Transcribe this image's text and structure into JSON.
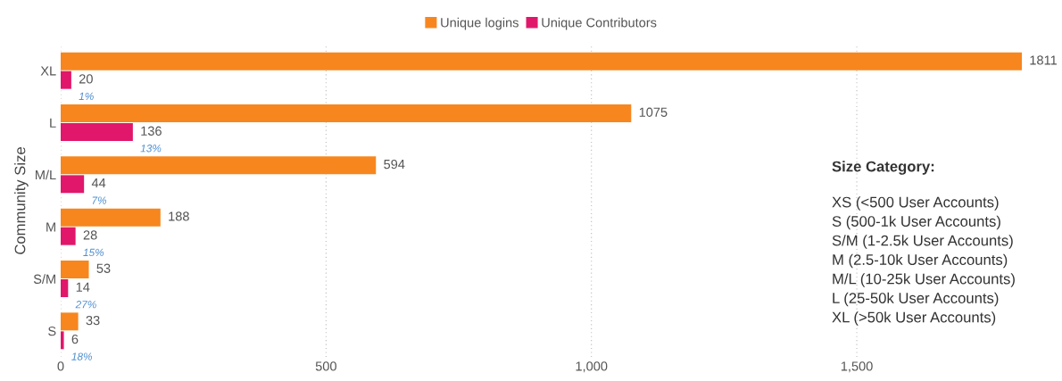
{
  "chart_data": {
    "type": "bar",
    "orientation": "horizontal",
    "categories": [
      "XL",
      "L",
      "M/L",
      "M",
      "S/M",
      "S"
    ],
    "series": [
      {
        "name": "Unique logins",
        "color": "#f7861f",
        "values": [
          1811,
          1075,
          594,
          188,
          53,
          33
        ]
      },
      {
        "name": "Unique Contributors",
        "color": "#e0176a",
        "values": [
          20,
          136,
          44,
          28,
          14,
          6
        ]
      }
    ],
    "ylabel": "Community Size",
    "xlim": [
      0,
      1811
    ],
    "xticks": [
      0,
      500,
      {
        "value": 1000,
        "label": "1,000"
      },
      {
        "value": 1500,
        "label": "1,500"
      }
    ],
    "grid": "x",
    "legend": "top",
    "data_labels": true,
    "annotations": [
      {
        "text": "1%",
        "x": 20,
        "y": "XL"
      },
      {
        "text": "13%",
        "x": 136,
        "y": "L"
      },
      {
        "text": "7%",
        "x": 44,
        "y": "M/L"
      },
      {
        "text": "15%",
        "x": 28,
        "y": "M"
      },
      {
        "text": "27%",
        "x": 14,
        "y": "S/M"
      },
      {
        "text": "18%",
        "x": 6,
        "y": "S"
      },
      "Size Category:",
      "XS (<500 User Accounts)",
      "S (500-1k User Accounts)",
      "S/M (1-2.5k User Accounts)",
      "M (2.5-10k User Accounts)",
      "M/L (10-25k User Accounts)",
      "L (25-50k User Accounts)",
      "XL (>50k User Accounts)"
    ]
  }
}
